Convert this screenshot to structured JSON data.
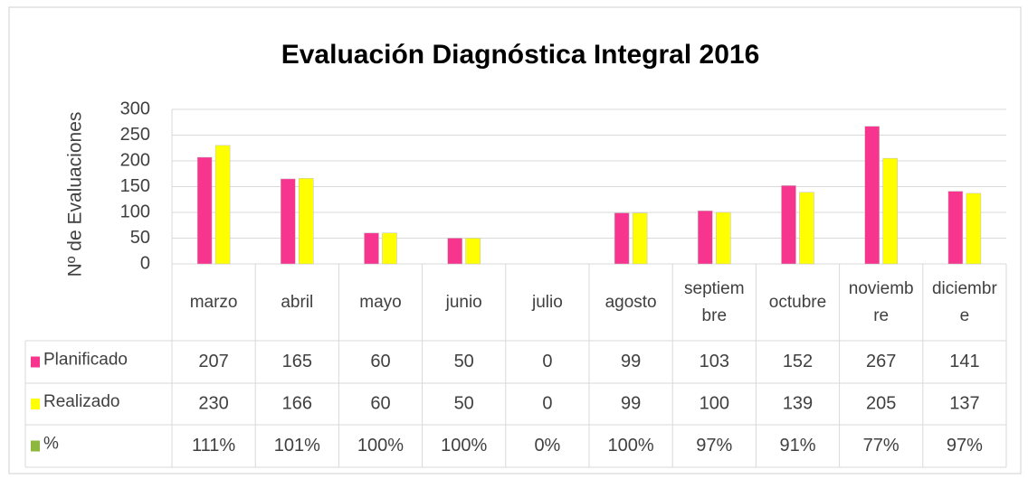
{
  "chart_data": {
    "type": "bar",
    "title": "Evaluación Diagnóstica Integral 2016",
    "y_label": "Nº  de  Evaluaciones",
    "categories": [
      "marzo",
      "abril",
      "mayo",
      "junio",
      "julio",
      "agosto",
      "septiembre",
      "octubre",
      "noviembre",
      "diciembre"
    ],
    "series": [
      {
        "name": "Planificado",
        "color": "#f7358f",
        "values": [
          207,
          165,
          60,
          50,
          0,
          99,
          103,
          152,
          267,
          141
        ]
      },
      {
        "name": "Realizado",
        "color": "#ffff00",
        "values": [
          230,
          166,
          60,
          50,
          0,
          99,
          100,
          139,
          205,
          137
        ]
      },
      {
        "name": "%",
        "color": "#8db83d",
        "values": [
          111,
          101,
          100,
          100,
          0,
          100,
          97,
          91,
          77,
          97
        ],
        "value_labels": [
          "111%",
          "101%",
          "100%",
          "100%",
          "0%",
          "100%",
          "97%",
          "91%",
          "77%",
          "97%"
        ],
        "axis": "y2"
      }
    ],
    "ylim": [
      0,
      300
    ],
    "yticks": [
      0,
      50,
      100,
      150,
      200,
      250,
      300
    ],
    "grid": true,
    "data_table": true
  }
}
